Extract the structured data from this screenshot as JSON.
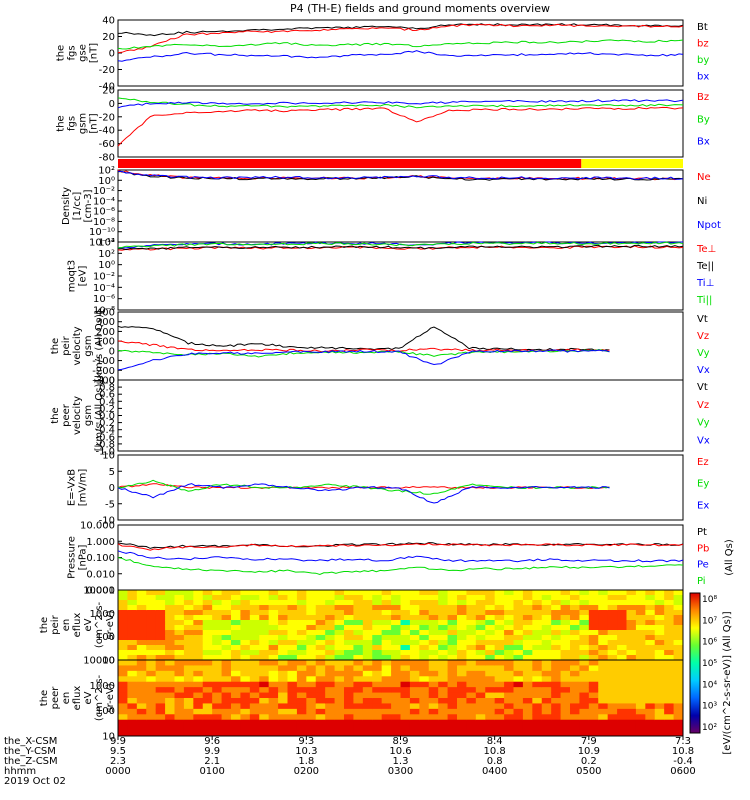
{
  "title": "P4 (TH-E) fields and ground moments overview",
  "footer": {
    "row_labels": [
      "the_X-CSM",
      "the_Y-CSM",
      "the_Z-CSM",
      "hhmm",
      "2019 Oct 02"
    ],
    "columns": [
      [
        "9.9",
        "9.5",
        "2.3",
        "0000"
      ],
      [
        "9.6",
        "9.9",
        "2.1",
        "0100"
      ],
      [
        "9.3",
        "10.3",
        "1.8",
        "0200"
      ],
      [
        "8.9",
        "10.6",
        "1.3",
        "0300"
      ],
      [
        "8.4",
        "10.8",
        "0.8",
        "0400"
      ],
      [
        "7.9",
        "10.9",
        "0.2",
        "0500"
      ],
      [
        "7.3",
        "10.8",
        "-0.4",
        "0600"
      ]
    ]
  },
  "colorbar": {
    "label": "[eV/(cm^2-s-sr-eV)] (All Qs)]",
    "ticks": [
      "10^8",
      "10^7",
      "10^6",
      "10^5",
      "10^4",
      "10^3",
      "10^2"
    ]
  },
  "status_bar": {
    "colors": [
      "#ff0000",
      "#ffff00"
    ],
    "split_fraction": 0.82
  },
  "chart_data": [
    {
      "type": "line",
      "panel": "fgs_gse",
      "ylabel": [
        "the",
        "fgs",
        "gse",
        "[nT]"
      ],
      "yticks": [
        "40",
        "20",
        "0",
        "-20",
        "-40"
      ],
      "ylim": [
        -40,
        40
      ],
      "series": [
        {
          "name": "Bt",
          "color": "#000000",
          "values": [
            25,
            22,
            25,
            26,
            28,
            29,
            30,
            31,
            32,
            30,
            34,
            35,
            34,
            35,
            34,
            34,
            33,
            33
          ]
        },
        {
          "name": "bz",
          "color": "#ff0000",
          "values": [
            0,
            8,
            22,
            24,
            26,
            26,
            28,
            29,
            30,
            28,
            33,
            34,
            33,
            34,
            33,
            33,
            32,
            32
          ]
        },
        {
          "name": "by",
          "color": "#00dd00",
          "values": [
            5,
            8,
            10,
            8,
            10,
            12,
            9,
            10,
            11,
            8,
            11,
            12,
            13,
            13,
            14,
            15,
            14,
            15
          ]
        },
        {
          "name": "bx",
          "color": "#0000ff",
          "values": [
            -10,
            -5,
            0,
            -2,
            -3,
            -4,
            -6,
            -3,
            -2,
            2,
            -4,
            -3,
            -2,
            -1,
            0,
            -2,
            -3,
            -2
          ]
        }
      ]
    },
    {
      "type": "line",
      "panel": "fgs_gsm",
      "ylabel": [
        "the",
        "fgs",
        "gsm",
        "[nT]"
      ],
      "yticks": [
        "20",
        "0",
        "-20",
        "-40",
        "-60",
        "-80"
      ],
      "ylim": [
        -90,
        25
      ],
      "series": [
        {
          "name": "Bz",
          "color": "#ff0000",
          "values": [
            -70,
            -20,
            -15,
            -12,
            -10,
            -11,
            -9,
            -8,
            -7,
            -30,
            -10,
            -9,
            -8,
            -8,
            -7,
            -7,
            -6,
            -6
          ]
        },
        {
          "name": "By",
          "color": "#00dd00",
          "values": [
            10,
            5,
            0,
            -3,
            -2,
            -4,
            -3,
            -2,
            -1,
            -5,
            -3,
            -2,
            -2,
            -1,
            -1,
            -2,
            -1,
            -1
          ]
        },
        {
          "name": "Bx",
          "color": "#0000ff",
          "values": [
            -5,
            2,
            3,
            2,
            1,
            3,
            2,
            3,
            4,
            2,
            4,
            5,
            6,
            5,
            6,
            7,
            6,
            7
          ]
        }
      ]
    },
    {
      "type": "line",
      "panel": "density",
      "yscale": "log",
      "ylabel": [
        "Density",
        "[1/cc]",
        "[cm-3]"
      ],
      "yticks": [
        "10^2",
        "10^0",
        "10^-2",
        "10^-4",
        "10^-6",
        "10^-8",
        "10^-10",
        "10^-12"
      ],
      "ylim": [
        -12,
        2
      ],
      "series": [
        {
          "name": "Ne",
          "color": "#ff0000",
          "values": [
            1.8,
            1.0,
            0.5,
            0.5,
            0.4,
            0.5,
            0.4,
            0.4,
            0.5,
            0.8,
            0.4,
            0.3,
            0.4,
            0.3,
            0.4,
            0.3,
            0.3,
            0.3
          ]
        },
        {
          "name": "Ni",
          "color": "#000000",
          "values": [
            1.7,
            0.8,
            0.4,
            0.4,
            0.3,
            0.4,
            0.3,
            0.3,
            0.4,
            0.7,
            0.3,
            0.2,
            0.3,
            0.2,
            0.3,
            0.2,
            0.2,
            0.2
          ]
        },
        {
          "name": "Npot",
          "color": "#0000ff",
          "values": [
            1.6,
            0.9,
            0.6,
            0.5,
            0.5,
            0.6,
            0.5,
            0.5,
            0.6,
            0.9,
            0.5,
            0.4,
            0.5,
            0.4,
            0.5,
            0.4,
            0.4,
            0.4
          ]
        }
      ]
    },
    {
      "type": "line",
      "panel": "temperature",
      "yscale": "log",
      "ylabel": [
        "moqt3",
        "[eV]"
      ],
      "yticks": [
        "10^4",
        "10^2",
        "10^0",
        "10^-2",
        "10^-4",
        "10^-6",
        "10^-8"
      ],
      "ylim": [
        -8,
        4
      ],
      "series": [
        {
          "name": "Te⊥",
          "color": "#ff0000",
          "values": [
            2.6,
            2.7,
            2.9,
            3.0,
            2.9,
            3.0,
            3.0,
            3.1,
            3.0,
            2.8,
            3.0,
            3.1,
            3.1,
            3.0,
            3.1,
            3.2,
            3.1,
            3.1
          ]
        },
        {
          "name": "Te||",
          "color": "#000000",
          "values": [
            2.7,
            2.8,
            3.0,
            3.1,
            3.0,
            3.1,
            3.1,
            3.2,
            3.1,
            2.9,
            3.1,
            3.2,
            3.2,
            3.1,
            3.2,
            3.3,
            3.2,
            3.2
          ]
        },
        {
          "name": "Ti⊥",
          "color": "#0000ff",
          "values": [
            3.0,
            3.4,
            3.6,
            3.7,
            3.6,
            3.7,
            3.8,
            3.8,
            3.7,
            3.5,
            3.8,
            3.9,
            3.8,
            3.9,
            3.8,
            3.9,
            3.9,
            3.9
          ]
        },
        {
          "name": "Ti||",
          "color": "#00dd00",
          "values": [
            3.1,
            3.3,
            3.5,
            3.6,
            3.5,
            3.6,
            3.7,
            3.7,
            3.6,
            3.4,
            3.7,
            3.8,
            3.7,
            3.8,
            3.7,
            3.8,
            3.8,
            3.8
          ]
        }
      ]
    },
    {
      "type": "line",
      "panel": "peir_velocity",
      "ylabel": [
        "the",
        "peir",
        "velocity",
        "gsm",
        "[km/s (All Qs)]"
      ],
      "yticks": [
        "400",
        "300",
        "200",
        "100",
        "0",
        "-100",
        "-200",
        "-300"
      ],
      "ylim": [
        -300,
        400
      ],
      "series": [
        {
          "name": "Vt",
          "color": "#000000",
          "values": [
            250,
            230,
            80,
            50,
            70,
            40,
            30,
            25,
            20,
            250,
            30,
            20,
            15,
            15,
            10
          ]
        },
        {
          "name": "Vz",
          "color": "#ff0000",
          "values": [
            100,
            60,
            10,
            0,
            10,
            5,
            0,
            10,
            5,
            20,
            5,
            10,
            5,
            10,
            5
          ]
        },
        {
          "name": "Vy",
          "color": "#00dd00",
          "values": [
            0,
            -20,
            -40,
            -30,
            -60,
            -20,
            -10,
            -20,
            -10,
            -50,
            -20,
            -10,
            -5,
            0,
            0
          ]
        },
        {
          "name": "Vx",
          "color": "#0000ff",
          "values": [
            -200,
            -100,
            -30,
            -20,
            -30,
            -10,
            -10,
            -5,
            -10,
            -150,
            -10,
            -5,
            0,
            -5,
            0
          ]
        }
      ]
    },
    {
      "type": "line",
      "panel": "peer_velocity",
      "ylabel": [
        "the",
        "peer",
        "velocity",
        "gsm",
        "[km/s (All Qs)]"
      ],
      "yticks": [
        "1.0",
        "0.8",
        "0.6",
        "0.4",
        "0.2",
        "0.0",
        "-0.2",
        "-0.4",
        "-0.6",
        "-0.8",
        "-1.0"
      ],
      "ylim": [
        -1.0,
        1.0
      ],
      "series": [
        {
          "name": "Vt",
          "color": "#000000",
          "values": []
        },
        {
          "name": "Vz",
          "color": "#ff0000",
          "values": []
        },
        {
          "name": "Vy",
          "color": "#00dd00",
          "values": []
        },
        {
          "name": "Vx",
          "color": "#0000ff",
          "values": []
        }
      ]
    },
    {
      "type": "line",
      "panel": "efield",
      "ylabel": [
        "E=-VxB",
        "[mV/m]"
      ],
      "yticks": [
        "10",
        "5",
        "0",
        "-5",
        "-10"
      ],
      "ylim": [
        -10,
        10
      ],
      "series": [
        {
          "name": "Ez",
          "color": "#ff0000",
          "values": [
            0,
            1,
            0,
            0,
            0,
            0,
            0,
            0,
            0,
            0,
            0,
            0,
            0,
            0,
            0
          ]
        },
        {
          "name": "Ey",
          "color": "#00dd00",
          "values": [
            0,
            2,
            -1,
            1,
            0,
            0,
            1,
            0,
            -1,
            -2,
            1,
            0,
            0,
            0,
            0
          ]
        },
        {
          "name": "Ex",
          "color": "#0000ff",
          "values": [
            0,
            -3,
            1,
            0,
            1,
            0,
            -1,
            0,
            0,
            -5,
            0,
            0,
            0,
            0,
            0
          ]
        }
      ]
    },
    {
      "type": "line",
      "panel": "pressure",
      "yscale": "log",
      "ylabel": [
        "Pressure",
        "[nPa]"
      ],
      "yticks": [
        "10.000",
        "1.000",
        "0.100",
        "0.010",
        "0.001"
      ],
      "ylim": [
        -3,
        1
      ],
      "series": [
        {
          "name": "Pt",
          "color": "#000000",
          "values": [
            -0.1,
            -0.4,
            -0.3,
            -0.3,
            -0.2,
            -0.3,
            -0.3,
            -0.2,
            -0.2,
            -0.1,
            -0.2,
            -0.2,
            -0.2,
            -0.2,
            -0.2,
            -0.2,
            -0.2,
            -0.2
          ]
        },
        {
          "name": "Pb",
          "color": "#ff0000",
          "values": [
            -0.2,
            -0.5,
            -0.35,
            -0.35,
            -0.25,
            -0.3,
            -0.3,
            -0.25,
            -0.25,
            -0.15,
            -0.22,
            -0.22,
            -0.22,
            -0.22,
            -0.22,
            -0.22,
            -0.22,
            -0.22
          ]
        },
        {
          "name": "Pe",
          "color": "#0000ff",
          "values": [
            -0.6,
            -1.0,
            -1.1,
            -1.0,
            -1.1,
            -1.1,
            -1.2,
            -1.1,
            -1.2,
            -0.9,
            -1.2,
            -1.2,
            -1.2,
            -1.1,
            -1.2,
            -1.2,
            -1.2,
            -1.2
          ]
        },
        {
          "name": "Pi",
          "color": "#00dd00",
          "values": [
            -1.0,
            -1.5,
            -1.7,
            -1.8,
            -1.9,
            -1.8,
            -2.0,
            -1.9,
            -1.8,
            -1.6,
            -1.8,
            -1.7,
            -1.7,
            -1.6,
            -1.6,
            -1.6,
            -1.5,
            -1.5
          ]
        }
      ],
      "legend_note": "(All Qs)"
    },
    {
      "type": "heatmap",
      "panel": "peir_eflux",
      "ylabel": [
        "the",
        "peir",
        "en",
        "eflux",
        "eV",
        "(cm^2-s-",
        "sr-eV)"
      ],
      "yticks": [
        "10000",
        "1000",
        "100",
        "10"
      ],
      "ylim": [
        1,
        4.3
      ]
    },
    {
      "type": "heatmap",
      "panel": "peer_eflux",
      "ylabel": [
        "the",
        "peer",
        "en",
        "eflux",
        "eV",
        "(cm^2-s-",
        "sr-eV)"
      ],
      "yticks": [
        "10000",
        "1000",
        "100",
        "10"
      ],
      "ylim": [
        1,
        4.3
      ]
    }
  ]
}
